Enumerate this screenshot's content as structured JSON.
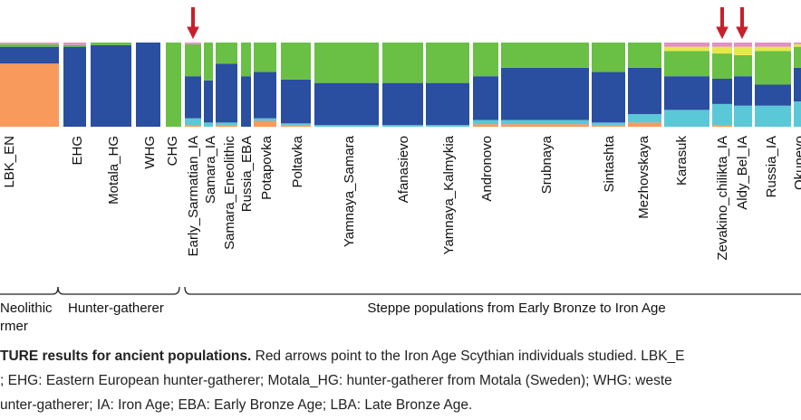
{
  "figure": {
    "populations": [
      "LBK_EN",
      "EHG",
      "Motala_HG",
      "WHG",
      "CHG",
      "Early_Sarmatian_IA",
      "Samara_IA",
      "Samara_Eneolithic",
      "Russia_EBA",
      "Potapovka",
      "Poltavka",
      "Yamnaya_Samara",
      "Afanasievo",
      "Yamnaya_Kalmykia",
      "Andronovo",
      "Srubnaya",
      "Sintashta",
      "Mezhovskaya",
      "Karasuk",
      "Zevakino_chilikta_IA",
      "Aldy_Bel_IA",
      "Russia_IA",
      "Okunevo"
    ],
    "components": [
      {
        "color": "#f79a5c",
        "values": [
          0.75,
          0,
          0,
          0,
          0,
          0.02,
          0,
          0.02,
          0,
          0.07,
          0.02,
          0,
          0,
          0,
          0.03,
          0.03,
          0.02,
          0.05,
          0,
          0.02,
          0,
          0,
          0
        ]
      },
      {
        "color": "#5bc8d8",
        "values": [
          0,
          0,
          0,
          0,
          0,
          0.08,
          0.05,
          0.03,
          0,
          0.03,
          0.02,
          0.02,
          0.02,
          0.02,
          0.05,
          0.05,
          0.03,
          0.1,
          0.2,
          0.25,
          0.25,
          0.25,
          0.3
        ]
      },
      {
        "color": "#2a4ea0",
        "values": [
          0.2,
          0.95,
          0.97,
          1,
          0,
          0.5,
          0.5,
          0.7,
          0.6,
          0.55,
          0.52,
          0.5,
          0.5,
          0.5,
          0.52,
          0.62,
          0.6,
          0.55,
          0.4,
          0.3,
          0.35,
          0.25,
          0.4
        ]
      },
      {
        "color": "#6abf45",
        "values": [
          0.03,
          0.02,
          0.03,
          0,
          1,
          0.38,
          0.45,
          0.25,
          0.4,
          0.35,
          0.44,
          0.48,
          0.48,
          0.48,
          0.4,
          0.3,
          0.35,
          0.3,
          0.3,
          0.3,
          0.25,
          0.4,
          0.25
        ]
      },
      {
        "color": "#e6e84a",
        "values": [
          0,
          0,
          0,
          0,
          0,
          0,
          0,
          0,
          0,
          0,
          0,
          0,
          0,
          0,
          0,
          0,
          0,
          0,
          0.05,
          0.08,
          0.1,
          0.05,
          0.03
        ]
      },
      {
        "color": "#e28fc6",
        "values": [
          0.02,
          0.03,
          0,
          0,
          0,
          0.02,
          0,
          0,
          0,
          0,
          0,
          0,
          0,
          0,
          0,
          0,
          0,
          0,
          0.05,
          0.05,
          0.05,
          0.05,
          0.02
        ]
      }
    ]
  },
  "groups": [
    {
      "lines": [
        "Neolithic",
        "rmer"
      ]
    },
    {
      "lines": [
        "Hunter-gatherer"
      ]
    },
    {
      "lines": [
        "Steppe populations from Early Bronze to Iron Age"
      ]
    }
  ],
  "caption": {
    "lead": "TURE results for ancient populations.",
    "lines": [
      " Red arrows point to the Iron Age Scythian individuals studied. LBK_E",
      "; EHG: Eastern European hunter-gatherer; Motala_HG: hunter-gatherer from Motala (Sweden); WHG: weste",
      "unter-gatherer; IA: Iron Age; EBA: Early Bronze Age; LBA: Late Bronze Age."
    ]
  }
}
